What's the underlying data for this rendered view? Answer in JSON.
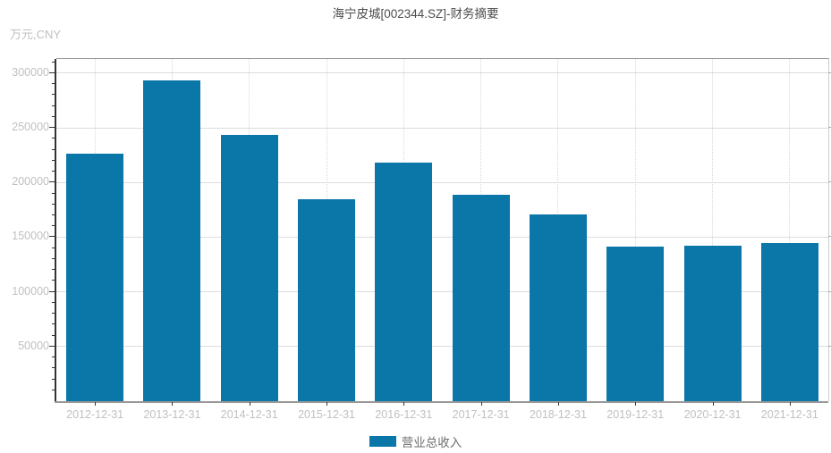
{
  "title": "海宁皮城[002344.SZ]-财务摘要",
  "unit_label": "万元,CNY",
  "legend": {
    "label": "营业总收入"
  },
  "colors": {
    "bar": "#0b76a8",
    "axis_line": "#333333",
    "grid_line": "#dddddd",
    "tick_label": "#c0c0c0",
    "title_text": "#4d4d4d",
    "legend_text": "#6e6e6e"
  },
  "chart_data": {
    "type": "bar",
    "title": "海宁皮城[002344.SZ]-财务摘要",
    "ylabel": "万元,CNY",
    "xlabel": "",
    "categories": [
      "2012-12-31",
      "2013-12-31",
      "2014-12-31",
      "2015-12-31",
      "2016-12-31",
      "2017-12-31",
      "2018-12-31",
      "2019-12-31",
      "2020-12-31",
      "2021-12-31"
    ],
    "series": [
      {
        "name": "营业总收入",
        "color": "#0b76a8",
        "values": [
          226100,
          293600,
          243800,
          184900,
          218200,
          188400,
          171200,
          141800,
          142400,
          145000
        ]
      }
    ],
    "yticks": [
      50000,
      100000,
      150000,
      200000,
      250000,
      300000
    ],
    "minor_tick_step": 10000,
    "ylim": [
      0,
      313000
    ],
    "grid": true,
    "legend_position": "bottom"
  }
}
